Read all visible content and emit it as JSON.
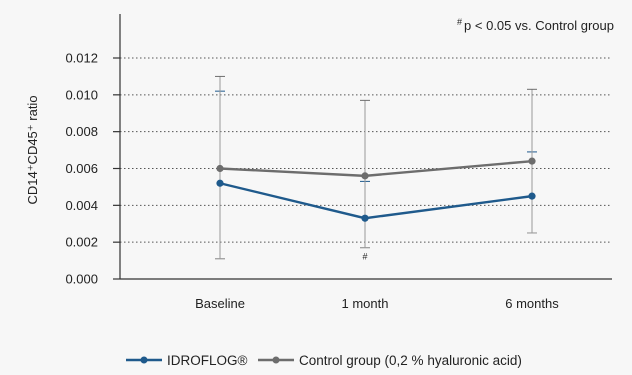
{
  "chart_data": {
    "type": "line",
    "title": "",
    "annotation_symbol": "#",
    "annotation_text": "p < 0.05 vs. Control group",
    "xlabel": "",
    "ylabel": "CD14⁺CD45⁺ ratio",
    "categories": [
      "Baseline",
      "1 month",
      "6 months"
    ],
    "ylim": [
      0,
      0.013
    ],
    "yticks": [
      "0.000",
      "0.002",
      "0.004",
      "0.006",
      "0.008",
      "0.010",
      "0.012"
    ],
    "ytick_values": [
      0,
      0.002,
      0.004,
      0.006,
      0.008,
      0.01,
      0.012
    ],
    "grid": true,
    "legend_position": "bottom",
    "series": [
      {
        "name": "IDROFLOG®",
        "color": "#1f5a8c",
        "values": [
          0.0052,
          0.0033,
          0.0045
        ],
        "error_upper": [
          0.0102,
          0.0053,
          0.0069
        ],
        "error_lower": [
          0.0011,
          0.0017,
          0.0025
        ]
      },
      {
        "name": "Control group (0,2 % hyaluronic acid)",
        "color": "#6d6d6d",
        "values": [
          0.006,
          0.0056,
          0.0064
        ],
        "error_upper": [
          0.011,
          0.0097,
          0.0103
        ],
        "error_lower": [
          0.0011,
          0.0017,
          0.0025
        ]
      }
    ],
    "point_annotations": [
      {
        "category_index": 1,
        "series_index": 0,
        "text": "#"
      }
    ]
  }
}
